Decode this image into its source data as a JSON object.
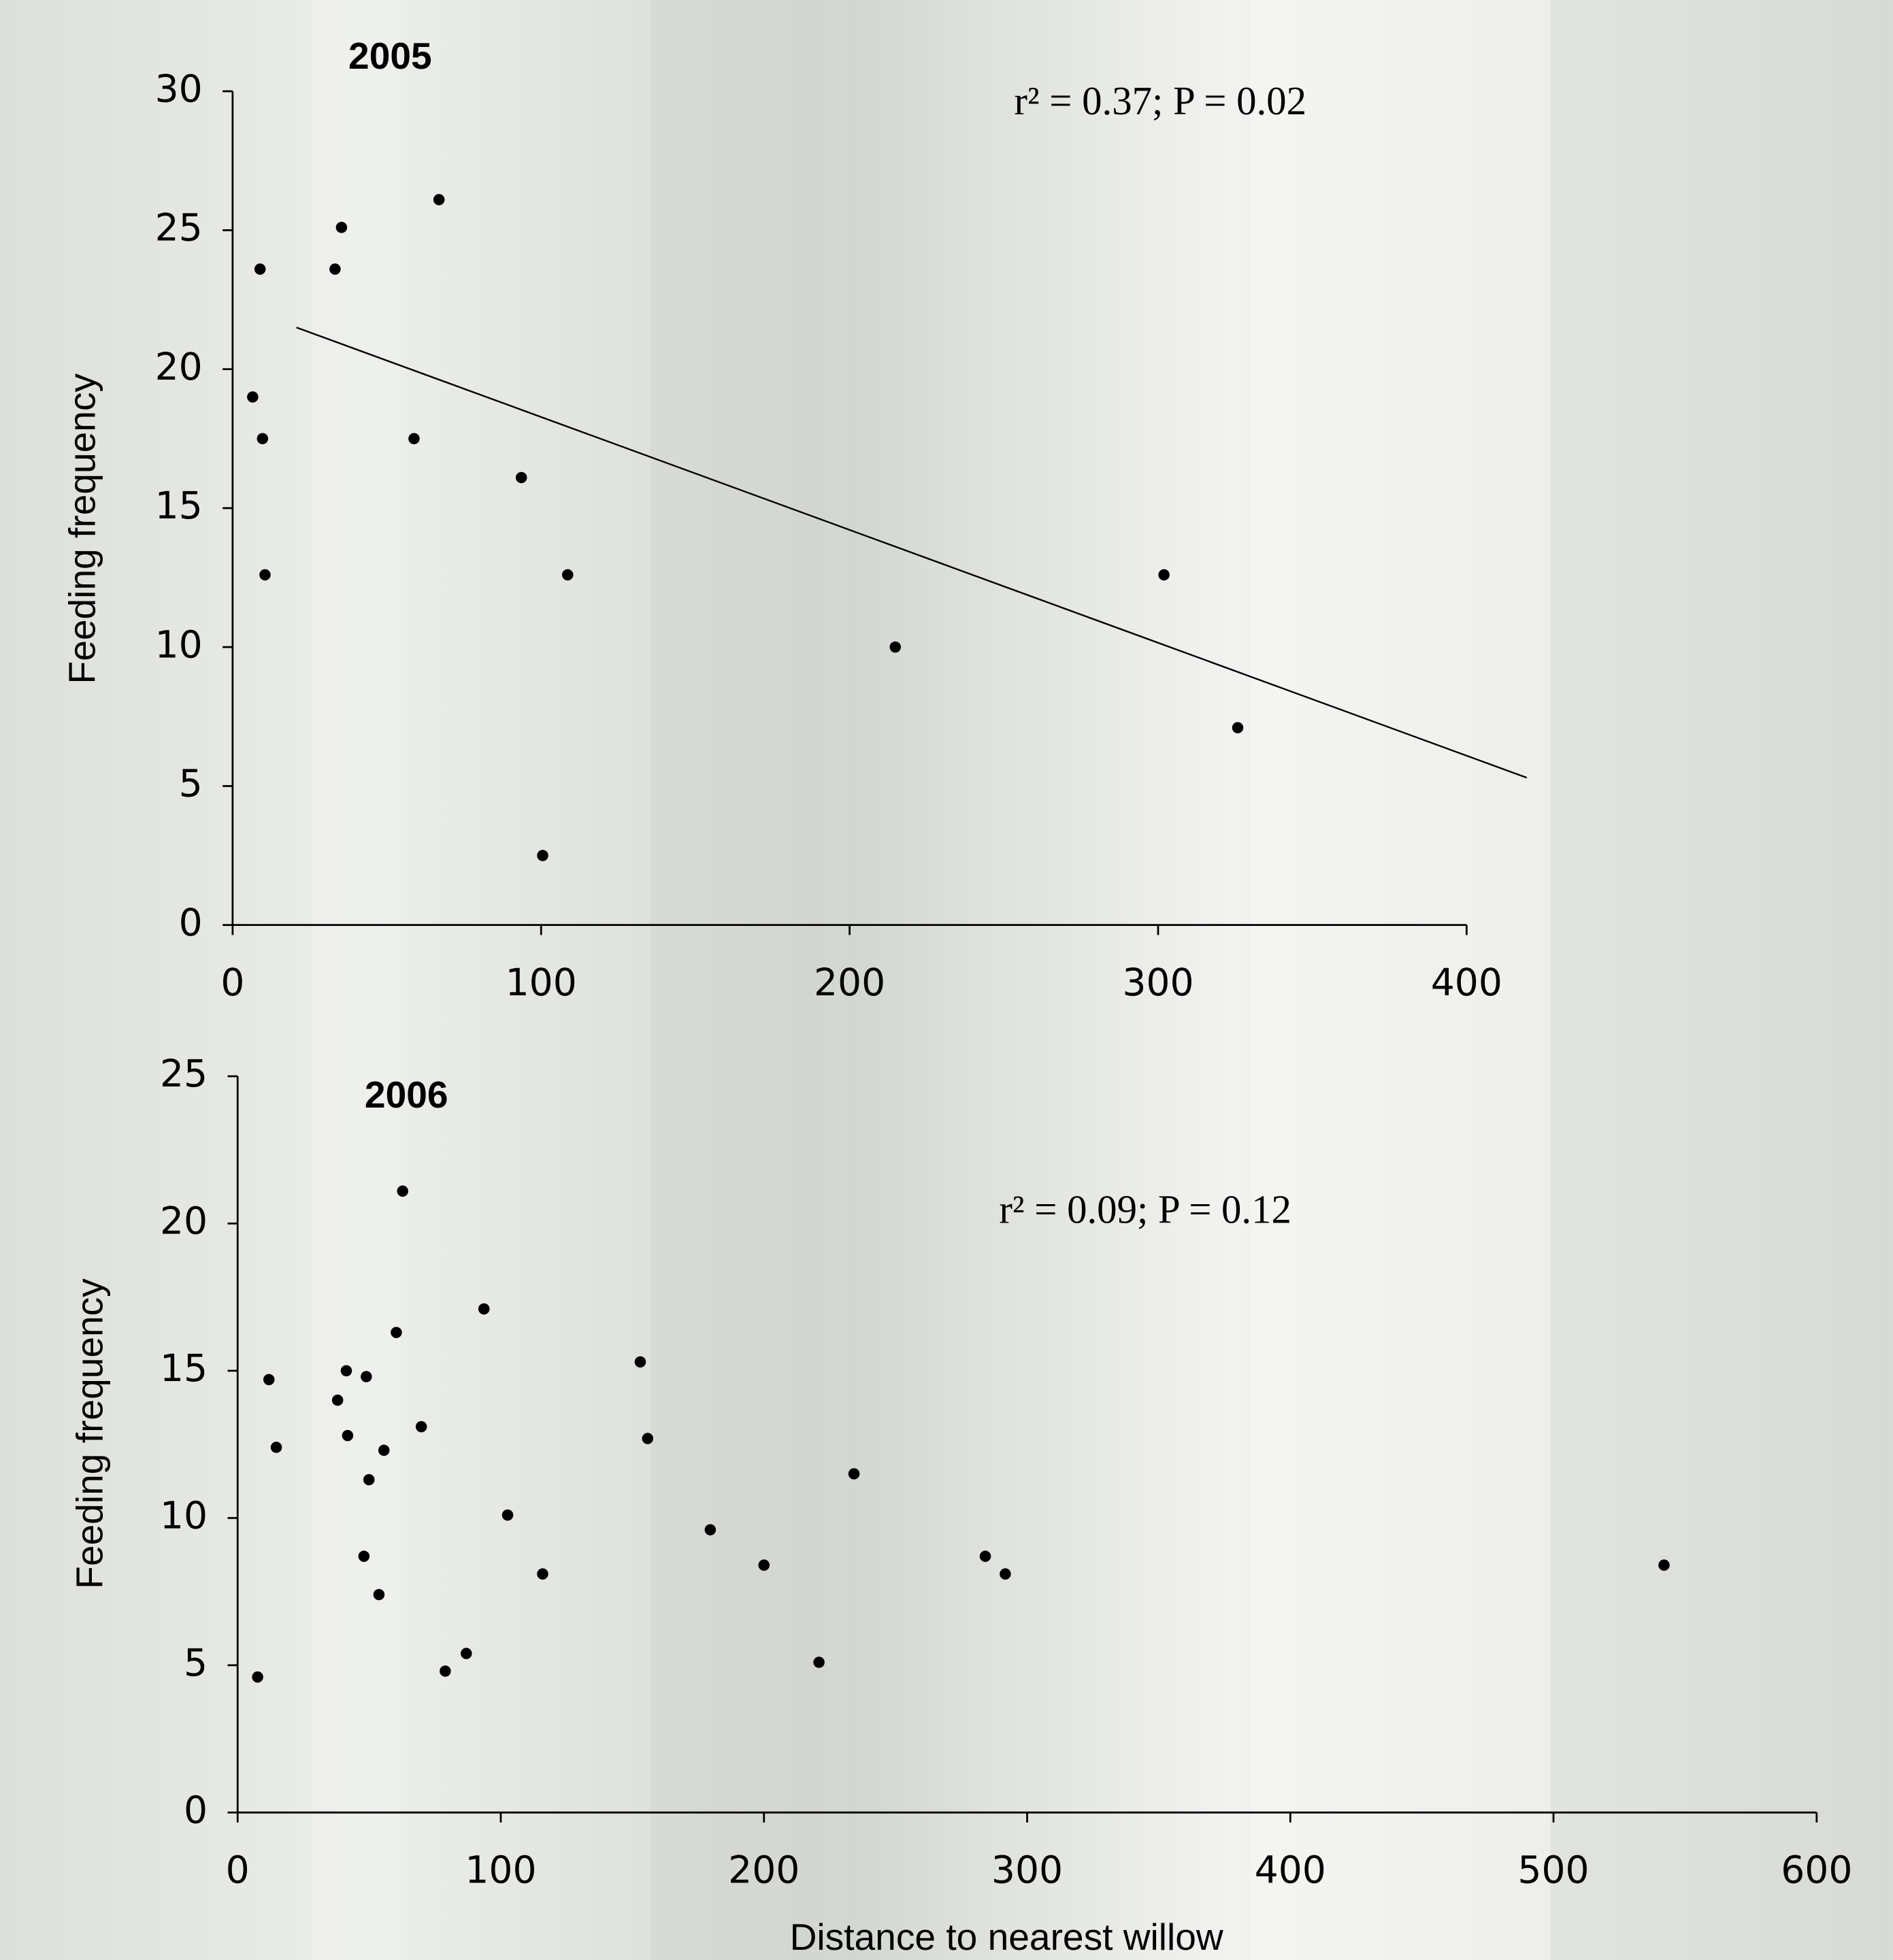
{
  "chart_data": [
    {
      "type": "scatter",
      "title": "2005",
      "annotation": "r² = 0.37; P = 0.02",
      "y_label": "Feeding frequency",
      "x": [
        8.9,
        35.3,
        66.9,
        33.2,
        6.5,
        9.7,
        58.8,
        93.6,
        10.5,
        108.6,
        214.8,
        301.9,
        325.8,
        100.5
      ],
      "y": [
        23.6,
        25.1,
        26.1,
        23.6,
        19.0,
        17.5,
        17.5,
        16.1,
        12.6,
        12.6,
        10.0,
        12.6,
        7.1,
        2.5
      ],
      "color": "#000000",
      "trendline": {
        "x": [
          20.7,
          419.5
        ],
        "y": [
          21.5,
          5.3
        ]
      },
      "xlim": [
        0,
        400
      ],
      "ylim": [
        0,
        30
      ],
      "xticks": [
        0,
        100,
        200,
        300,
        400
      ],
      "yticks": [
        0,
        5,
        10,
        15,
        20,
        25,
        30
      ]
    },
    {
      "type": "scatter",
      "title": "2006",
      "annotation": "r² = 0.09; P = 0.12",
      "y_label": "Feeding frequency",
      "x_label": "Distance to nearest willow",
      "x": [
        7.6,
        11.9,
        14.7,
        38.0,
        41.3,
        41.8,
        48.9,
        48.0,
        49.9,
        53.7,
        55.6,
        60.3,
        62.7,
        69.8,
        78.9,
        86.9,
        93.6,
        102.6,
        115.9,
        153.0,
        155.8,
        179.6,
        200.0,
        220.9,
        234.2,
        284.1,
        291.7,
        542.0
      ],
      "y": [
        4.6,
        14.7,
        12.4,
        14.0,
        15.0,
        12.8,
        14.8,
        8.7,
        11.3,
        7.4,
        12.3,
        16.3,
        21.1,
        13.1,
        4.8,
        5.4,
        17.1,
        10.1,
        8.1,
        15.3,
        12.7,
        9.6,
        8.4,
        5.1,
        11.5,
        8.7,
        8.1,
        8.4
      ],
      "color": "#000000",
      "xlim": [
        0,
        600
      ],
      "ylim": [
        0,
        25
      ],
      "xticks": [
        0,
        100,
        200,
        300,
        400,
        500,
        600
      ],
      "yticks": [
        0,
        5,
        10,
        15,
        20,
        25
      ]
    }
  ]
}
